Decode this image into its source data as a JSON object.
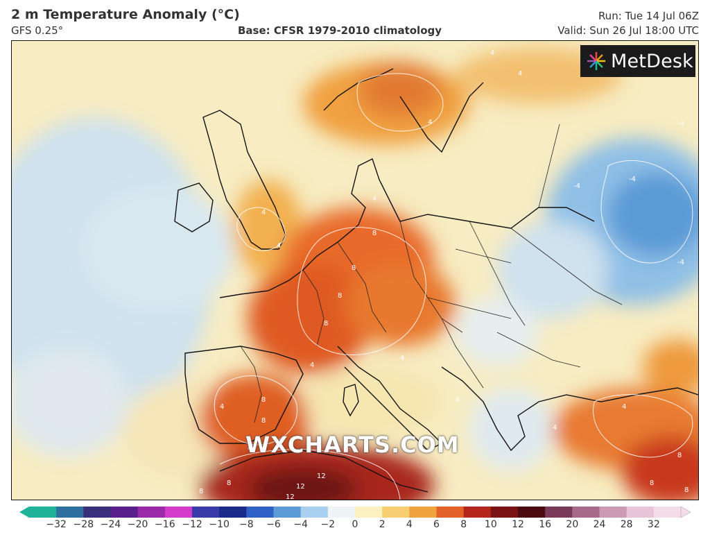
{
  "header": {
    "title": "2 m Temperature Anomaly (°C)",
    "model": "GFS 0.25°",
    "base": "Base: CFSR 1979-2010 climatology",
    "run": "Run: Tue 14 Jul 06Z",
    "valid": "Valid: Sun 26 Jul 18:00 UTC"
  },
  "logo": {
    "text": "MetDesk",
    "icon": "starburst-icon"
  },
  "watermark": "WXCHARTS.COM",
  "colorbar": {
    "ticks": [
      "−32",
      "−28",
      "−24",
      "−20",
      "−16",
      "−12",
      "−10",
      "−8",
      "−6",
      "−4",
      "−2",
      "0",
      "2",
      "4",
      "6",
      "8",
      "10",
      "12",
      "16",
      "20",
      "24",
      "28",
      "32"
    ],
    "colors": [
      "#1fb39a",
      "#2f6f9f",
      "#3a2f7a",
      "#5a1f8a",
      "#9a2aa8",
      "#d23cc8",
      "#3a3aa8",
      "#1a2a88",
      "#2f62c4",
      "#5c9ad8",
      "#a9d0ee",
      "#eef4f6",
      "#fbf1c0",
      "#f7cf72",
      "#f0a23e",
      "#e2622a",
      "#b5261c",
      "#7a1414",
      "#4a0c10",
      "#7a3a5a",
      "#a86a8a",
      "#cc9ab4",
      "#e8c4d8",
      "#f4dce8"
    ]
  },
  "contour_labels": {
    "map": [
      "4",
      "4",
      "4",
      "4",
      "4",
      "4",
      "4",
      "4",
      "8",
      "8",
      "8",
      "8",
      "8",
      "8",
      "8",
      "8",
      "4",
      "4",
      "4",
      "4",
      "4",
      "-4",
      "-4",
      "-4",
      "-4",
      "12",
      "12",
      "12",
      "8",
      "8",
      "8"
    ]
  }
}
